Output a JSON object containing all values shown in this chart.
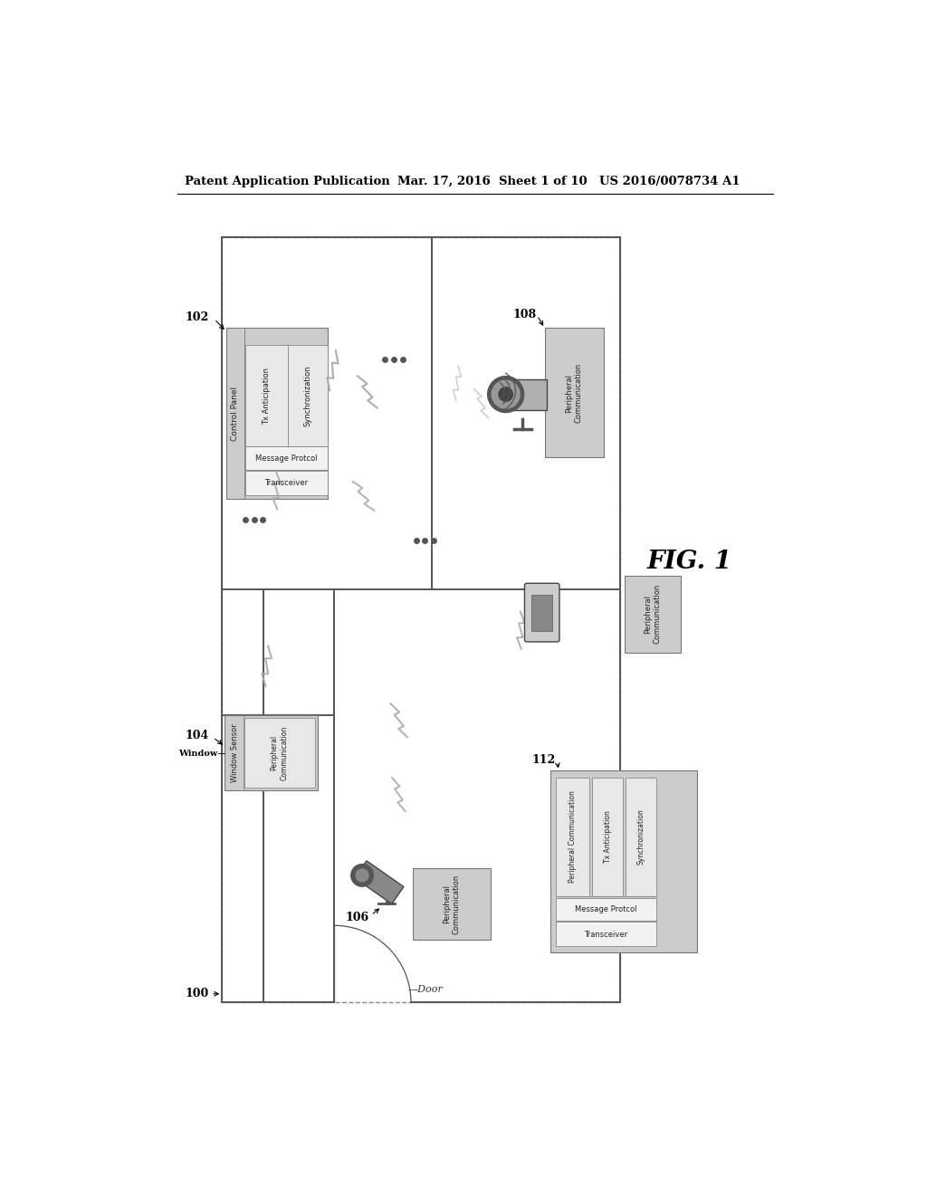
{
  "bg_color": "#ffffff",
  "header_left": "Patent Application Publication",
  "header_mid": "Mar. 17, 2016  Sheet 1 of 10",
  "header_right": "US 2016/0078734 A1",
  "fig_label": "FIG. 1",
  "wall_color": "#555555",
  "box_gray": "#cccccc",
  "box_light": "#e8e8e8",
  "box_white": "#f2f2f2"
}
